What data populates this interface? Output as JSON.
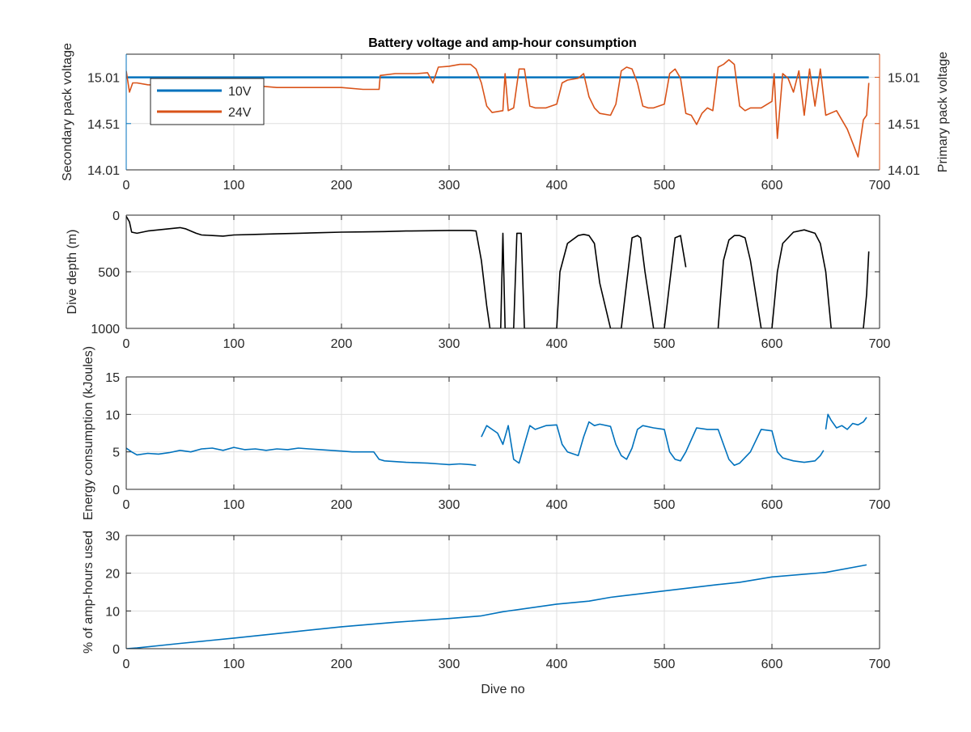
{
  "chart_data": [
    {
      "type": "line",
      "title": "Battery voltage and amp-hour consumption",
      "xlabel": "",
      "ylabel_left": "Secondary pack voltage",
      "ylabel_right": "Primary pack voltage",
      "xlim": [
        0,
        700
      ],
      "ylim_left": [
        14.01,
        15.26
      ],
      "ylim_right": [
        14.01,
        15.26
      ],
      "x_ticks": [
        "0",
        "100",
        "200",
        "300",
        "400",
        "500",
        "600",
        "700"
      ],
      "y_ticks_left": [
        "14.01",
        "14.51",
        "15.01"
      ],
      "y_ticks_right": [
        "14.01",
        "14.51",
        "15.01"
      ],
      "grid": true,
      "legend_position": "top-left",
      "series": [
        {
          "name": "10V",
          "axis": "left",
          "color": "#0072BD",
          "x": [
            0,
            690
          ],
          "y": [
            15.01,
            15.01
          ]
        },
        {
          "name": "24V",
          "axis": "right",
          "color": "#D95319",
          "x": [
            0,
            3,
            6,
            10,
            20,
            40,
            60,
            80,
            100,
            120,
            140,
            160,
            180,
            200,
            220,
            235,
            236,
            250,
            270,
            280,
            285,
            290,
            300,
            310,
            320,
            325,
            330,
            335,
            340,
            350,
            352,
            355,
            360,
            365,
            370,
            375,
            380,
            390,
            400,
            405,
            410,
            420,
            425,
            430,
            435,
            440,
            450,
            455,
            460,
            465,
            470,
            475,
            480,
            485,
            490,
            500,
            505,
            510,
            515,
            520,
            525,
            530,
            535,
            540,
            545,
            550,
            555,
            560,
            565,
            570,
            575,
            580,
            590,
            600,
            602,
            605,
            610,
            615,
            620,
            625,
            630,
            635,
            640,
            645,
            650,
            660,
            670,
            675,
            680,
            685,
            688,
            690
          ],
          "y": [
            15.08,
            14.85,
            14.95,
            14.95,
            14.93,
            14.92,
            14.92,
            14.9,
            14.92,
            14.92,
            14.9,
            14.9,
            14.9,
            14.9,
            14.88,
            14.88,
            15.03,
            15.05,
            15.05,
            15.06,
            14.95,
            15.12,
            15.13,
            15.15,
            15.15,
            15.1,
            14.95,
            14.7,
            14.63,
            14.65,
            15.05,
            14.65,
            14.68,
            15.1,
            15.1,
            14.7,
            14.68,
            14.68,
            14.72,
            14.95,
            14.98,
            15.0,
            15.05,
            14.8,
            14.68,
            14.62,
            14.6,
            14.72,
            15.08,
            15.12,
            15.1,
            14.95,
            14.7,
            14.68,
            14.68,
            14.72,
            15.05,
            15.1,
            15.0,
            14.62,
            14.6,
            14.5,
            14.62,
            14.68,
            14.65,
            15.12,
            15.15,
            15.2,
            15.15,
            14.7,
            14.65,
            14.68,
            14.68,
            14.75,
            15.05,
            14.35,
            15.05,
            15.0,
            14.85,
            15.08,
            14.6,
            15.1,
            14.7,
            15.1,
            14.6,
            14.65,
            14.45,
            14.3,
            14.15,
            14.55,
            14.6,
            14.95
          ]
        }
      ]
    },
    {
      "type": "line",
      "title": "",
      "xlabel": "",
      "ylabel": "Dive depth (m)",
      "xlim": [
        0,
        700
      ],
      "ylim": [
        1000,
        0
      ],
      "y_reversed": true,
      "x_ticks": [
        "0",
        "100",
        "200",
        "300",
        "400",
        "500",
        "600",
        "700"
      ],
      "y_ticks": [
        "0",
        "500",
        "1000"
      ],
      "grid": true,
      "series": [
        {
          "color": "#000000",
          "x": [
            0,
            3,
            5,
            10,
            20,
            30,
            40,
            50,
            55,
            60,
            65,
            70,
            80,
            90,
            100,
            120,
            140,
            160,
            180,
            200,
            220,
            240,
            260,
            280,
            300,
            310,
            320,
            325,
            330,
            335,
            338,
            340,
            342,
            345,
            348,
            350,
            352,
            355,
            358,
            360,
            363,
            367,
            370,
            375,
            380,
            390,
            398,
            400,
            403,
            410,
            420,
            425,
            430,
            435,
            440,
            450,
            460,
            465,
            470,
            475,
            478,
            482,
            490,
            500,
            505,
            510,
            515,
            520
          ],
          "y": [
            10,
            60,
            150,
            160,
            140,
            130,
            120,
            110,
            120,
            140,
            160,
            175,
            180,
            185,
            175,
            170,
            165,
            160,
            155,
            150,
            148,
            145,
            140,
            138,
            135,
            135,
            135,
            140,
            400,
            800,
            1000,
            1000,
            1000,
            1000,
            1000,
            160,
            1000,
            1000,
            1000,
            1000,
            160,
            160,
            1000,
            1000,
            1000,
            1000,
            1000,
            1000,
            500,
            250,
            180,
            170,
            180,
            250,
            600,
            1000,
            1000,
            600,
            200,
            180,
            200,
            500,
            1000,
            1000,
            600,
            200,
            180,
            460
          ]
        },
        {
          "color": "#000000",
          "x": [
            550,
            555,
            560,
            565,
            570,
            575,
            580,
            590,
            600,
            605,
            610,
            620,
            630,
            640,
            645,
            650,
            655,
            660,
            670,
            680,
            685,
            688,
            690
          ],
          "y": [
            1000,
            400,
            220,
            180,
            180,
            200,
            400,
            1000,
            1000,
            500,
            250,
            150,
            130,
            160,
            250,
            500,
            1000,
            1000,
            1000,
            1000,
            1000,
            700,
            320
          ]
        }
      ]
    },
    {
      "type": "line",
      "title": "",
      "xlabel": "",
      "ylabel": "Energy consumption (kJoules)",
      "xlim": [
        0,
        700
      ],
      "ylim": [
        0,
        15
      ],
      "x_ticks": [
        "0",
        "100",
        "200",
        "300",
        "400",
        "500",
        "600",
        "700"
      ],
      "y_ticks": [
        "0",
        "5",
        "10",
        "15"
      ],
      "grid": true,
      "series": [
        {
          "color": "#0072BD",
          "x": [
            0,
            5,
            10,
            20,
            30,
            40,
            50,
            60,
            70,
            80,
            90,
            100,
            110,
            120,
            130,
            140,
            150,
            160,
            170,
            180,
            190,
            200,
            210,
            220,
            230,
            235,
            240,
            260,
            280,
            290,
            300,
            310,
            320,
            325
          ],
          "y": [
            5.5,
            5.0,
            4.6,
            4.8,
            4.7,
            4.9,
            5.2,
            5.0,
            5.4,
            5.5,
            5.2,
            5.6,
            5.3,
            5.4,
            5.2,
            5.4,
            5.3,
            5.5,
            5.4,
            5.3,
            5.2,
            5.1,
            5.0,
            5.0,
            5.0,
            4.0,
            3.8,
            3.6,
            3.5,
            3.4,
            3.3,
            3.4,
            3.3,
            3.2
          ]
        },
        {
          "color": "#0072BD",
          "x": [
            330,
            335,
            340,
            345,
            350,
            355,
            360,
            365,
            370,
            375,
            380,
            390,
            400,
            405,
            410,
            420,
            425,
            430,
            435,
            440,
            450,
            455,
            460,
            465,
            470,
            475,
            480,
            490,
            500,
            505,
            510,
            515,
            520,
            530,
            540,
            550,
            555,
            560,
            565,
            570,
            580,
            590,
            600,
            605,
            610,
            620,
            630,
            640,
            645,
            648
          ],
          "y": [
            7.0,
            8.5,
            8.0,
            7.5,
            6.0,
            8.5,
            4.0,
            3.5,
            6.0,
            8.5,
            8.0,
            8.5,
            8.6,
            6.0,
            5.0,
            4.5,
            7.0,
            9.0,
            8.5,
            8.7,
            8.4,
            6.0,
            4.5,
            4.0,
            5.5,
            8.0,
            8.5,
            8.2,
            8.0,
            5.0,
            4.0,
            3.8,
            5.0,
            8.2,
            8.0,
            8.0,
            6.0,
            4.0,
            3.2,
            3.5,
            5.0,
            8.0,
            7.8,
            5.0,
            4.2,
            3.8,
            3.6,
            3.8,
            4.5,
            5.2
          ]
        },
        {
          "color": "#0072BD",
          "x": [
            650,
            652,
            655,
            660,
            665,
            670,
            675,
            680,
            685,
            688
          ],
          "y": [
            8.0,
            10.0,
            9.2,
            8.2,
            8.5,
            8.0,
            8.8,
            8.6,
            9.0,
            9.6
          ]
        }
      ]
    },
    {
      "type": "line",
      "title": "",
      "xlabel": "Dive no",
      "ylabel": "% of amp-hours used",
      "xlim": [
        0,
        700
      ],
      "ylim": [
        0,
        30
      ],
      "x_ticks": [
        "0",
        "100",
        "200",
        "300",
        "400",
        "500",
        "600",
        "700"
      ],
      "y_ticks": [
        "0",
        "10",
        "20",
        "30"
      ],
      "grid": true,
      "series": [
        {
          "color": "#0072BD",
          "x": [
            0,
            10,
            50,
            100,
            150,
            200,
            250,
            300,
            330,
            350,
            400,
            430,
            450,
            500,
            550,
            570,
            600,
            650,
            688
          ],
          "y": [
            0,
            0.2,
            1.4,
            2.8,
            4.3,
            5.8,
            7.0,
            8.0,
            8.7,
            9.8,
            11.8,
            12.6,
            13.6,
            15.3,
            17.0,
            17.6,
            19.0,
            20.2,
            22.2
          ]
        }
      ]
    }
  ]
}
